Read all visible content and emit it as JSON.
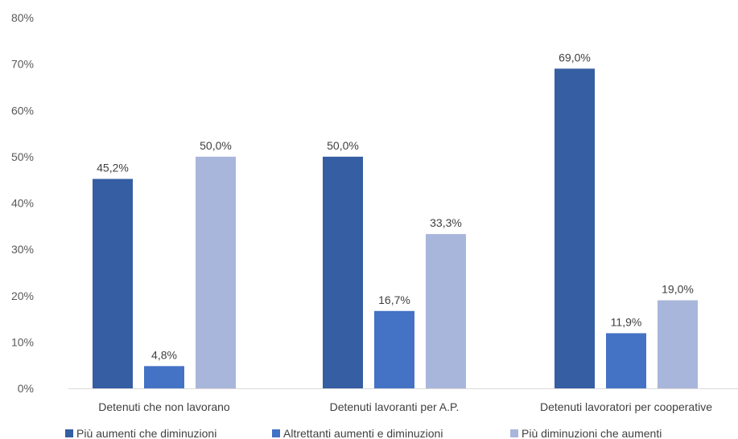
{
  "chart_data": {
    "type": "bar",
    "title": "",
    "xlabel": "",
    "ylabel": "",
    "ylim": [
      0,
      80
    ],
    "ytick_values": [
      0,
      10,
      20,
      30,
      40,
      50,
      60,
      70,
      80
    ],
    "ytick_labels": [
      "0%",
      "10%",
      "20%",
      "30%",
      "40%",
      "50%",
      "60%",
      "70%",
      "80%"
    ],
    "grid": false,
    "legend_position": "bottom",
    "categories": [
      "Detenuti che non lavorano",
      "Detenuti lavoranti per A.P.",
      "Detenuti lavoratori per cooperative"
    ],
    "series": [
      {
        "name": "Più aumenti che diminuzioni",
        "color": "#355ea3",
        "values": [
          45.2,
          50.0,
          69.0
        ],
        "labels": [
          "45,2%",
          "50,0%",
          "69,0%"
        ]
      },
      {
        "name": "Altrettanti aumenti e diminuzioni",
        "color": "#4472c4",
        "values": [
          4.8,
          16.7,
          11.9
        ],
        "labels": [
          "4,8%",
          "16,7%",
          "11,9%"
        ]
      },
      {
        "name": "Più diminuzioni che aumenti",
        "color": "#a9b6db",
        "values": [
          50.0,
          33.3,
          19.0
        ],
        "labels": [
          "50,0%",
          "33,3%",
          "19,0%"
        ]
      }
    ]
  }
}
